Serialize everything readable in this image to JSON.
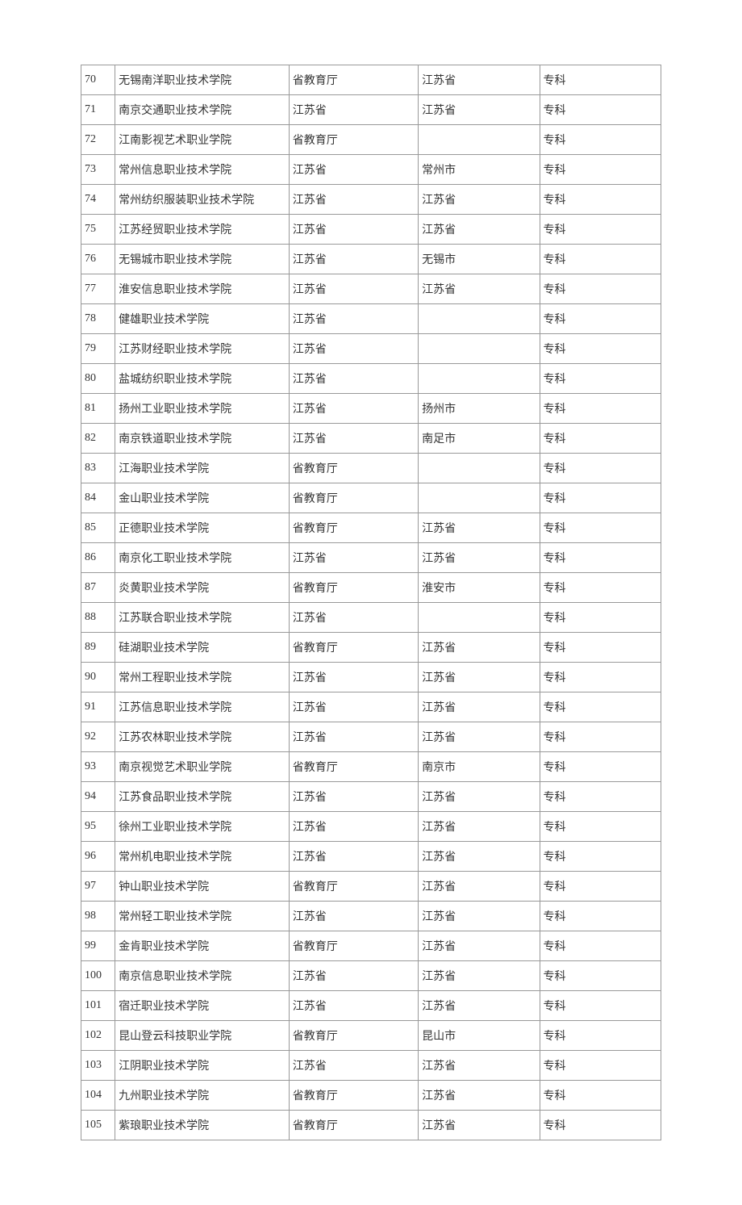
{
  "table": {
    "type": "table",
    "border_color": "#999999",
    "text_color": "#333333",
    "background_color": "#ffffff",
    "font_size_pt": 10.5,
    "column_widths_pct": [
      5.8,
      30,
      22.3,
      20.9,
      20.9
    ],
    "rows": [
      [
        "70",
        "无锡南洋职业技术学院",
        "省教育厅",
        "江苏省",
        "专科"
      ],
      [
        "71",
        "南京交通职业技术学院",
        "江苏省",
        "江苏省",
        "专科"
      ],
      [
        "72",
        "江南影视艺术职业学院",
        "省教育厅",
        "",
        "专科"
      ],
      [
        "73",
        "常州信息职业技术学院",
        "江苏省",
        "常州市",
        "专科"
      ],
      [
        "74",
        "常州纺织服装职业技术学院",
        "江苏省",
        "江苏省",
        "专科"
      ],
      [
        "75",
        "江苏经贸职业技术学院",
        "江苏省",
        "江苏省",
        "专科"
      ],
      [
        "76",
        "无锡城市职业技术学院",
        "江苏省",
        "无锡市",
        "专科"
      ],
      [
        "77",
        "淮安信息职业技术学院",
        "江苏省",
        "江苏省",
        "专科"
      ],
      [
        "78",
        "健雄职业技术学院",
        "江苏省",
        "",
        "专科"
      ],
      [
        "79",
        "江苏财经职业技术学院",
        "江苏省",
        "",
        "专科"
      ],
      [
        "80",
        "盐城纺织职业技术学院",
        "江苏省",
        "",
        "专科"
      ],
      [
        "81",
        "扬州工业职业技术学院",
        "江苏省",
        "扬州市",
        "专科"
      ],
      [
        "82",
        "南京铁道职业技术学院",
        "江苏省",
        "南足市",
        "专科"
      ],
      [
        "83",
        "江海职业技术学院",
        "省教育厅",
        "",
        "专科"
      ],
      [
        "84",
        "金山职业技术学院",
        "省教育厅",
        "",
        "专科"
      ],
      [
        "85",
        "正德职业技术学院",
        "省教育厅",
        "江苏省",
        "专科"
      ],
      [
        "86",
        "南京化工职业技术学院",
        "江苏省",
        "江苏省",
        "专科"
      ],
      [
        "87",
        "炎黄职业技术学院",
        "省教育厅",
        "淮安市",
        "专科"
      ],
      [
        "88",
        "江苏联合职业技术学院",
        "江苏省",
        "",
        "专科"
      ],
      [
        "89",
        "硅湖职业技术学院",
        "省教育厅",
        "江苏省",
        "专科"
      ],
      [
        "90",
        "常州工程职业技术学院",
        "江苏省",
        "江苏省",
        "专科"
      ],
      [
        "91",
        "江苏信息职业技术学院",
        "江苏省",
        "江苏省",
        "专科"
      ],
      [
        "92",
        "江苏农林职业技术学院",
        "江苏省",
        "江苏省",
        "专科"
      ],
      [
        "93",
        "南京视觉艺术职业学院",
        "省教育厅",
        "南京市",
        "专科"
      ],
      [
        "94",
        "江苏食品职业技术学院",
        "江苏省",
        "江苏省",
        "专科"
      ],
      [
        "95",
        "徐州工业职业技术学院",
        "江苏省",
        "江苏省",
        "专科"
      ],
      [
        "96",
        "常州机电职业技术学院",
        "江苏省",
        "江苏省",
        "专科"
      ],
      [
        "97",
        "钟山职业技术学院",
        "省教育厅",
        "江苏省",
        "专科"
      ],
      [
        "98",
        "常州轻工职业技术学院",
        "江苏省",
        "江苏省",
        "专科"
      ],
      [
        "99",
        "金肯职业技术学院",
        "省教育厅",
        "江苏省",
        "专科"
      ],
      [
        "100",
        "南京信息职业技术学院",
        "江苏省",
        "江苏省",
        "专科"
      ],
      [
        "101",
        "宿迁职业技术学院",
        "江苏省",
        "江苏省",
        "专科"
      ],
      [
        "102",
        "昆山登云科技职业学院",
        "省教育厅",
        "昆山市",
        "专科"
      ],
      [
        "103",
        "江阴职业技术学院",
        "江苏省",
        "江苏省",
        "专科"
      ],
      [
        "104",
        "九州职业技术学院",
        "省教育厅",
        "江苏省",
        "专科"
      ],
      [
        "105",
        "紫琅职业技术学院",
        "省教育厅",
        "江苏省",
        "专科"
      ]
    ]
  }
}
